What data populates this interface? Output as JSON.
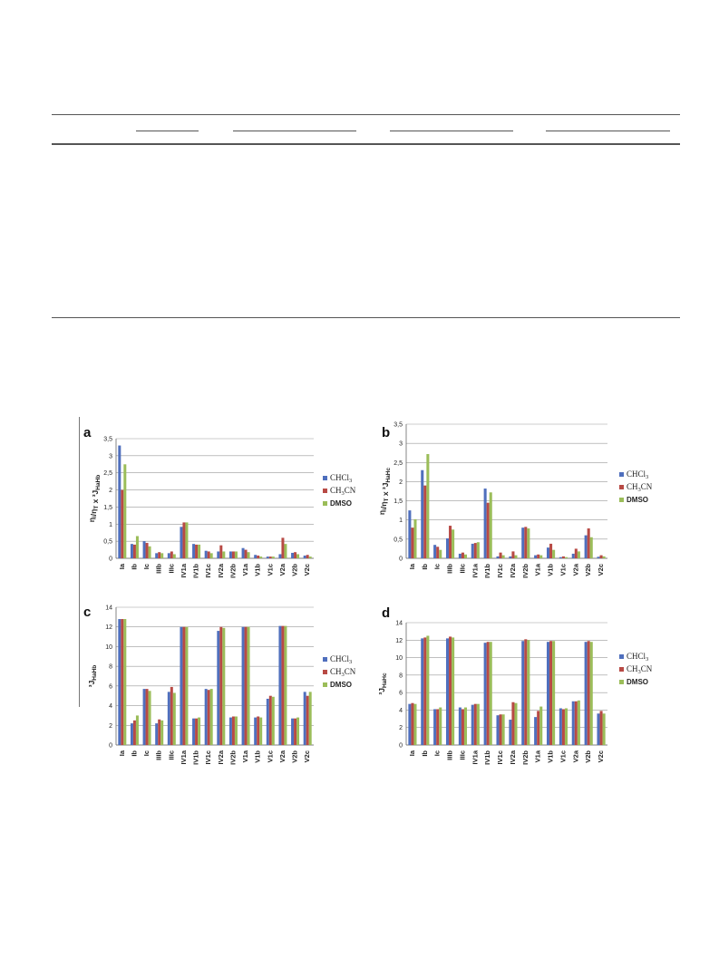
{
  "colors": {
    "CHCl3": "#4f6fbd",
    "CH3CN": "#b84a45",
    "DMSO": "#9bbd59",
    "grid": "#999999",
    "axis": "#666666"
  },
  "legend": [
    {
      "key": "CHCl3",
      "base": "CHCl",
      "sub": "3",
      "after": ""
    },
    {
      "key": "CH3CN",
      "base": "CH",
      "sub": "3",
      "after": "CN"
    },
    {
      "key": "DMSO",
      "base": "DMSO",
      "sub": "",
      "after": ""
    }
  ],
  "chart_data": [
    {
      "panel": "a",
      "type": "bar",
      "ylabel": "η_i/η_T x ³J_HaHb",
      "ylim": [
        0,
        3.5
      ],
      "yticks": [
        "0",
        "0,5",
        "1",
        "1,5",
        "2",
        "2,5",
        "3",
        "3,5"
      ],
      "categories": [
        "Ia",
        "Ib",
        "Ic",
        "IIIb",
        "IIIc",
        "IV1a",
        "IV1b",
        "IV1c",
        "IV2a",
        "IV2b",
        "V1a",
        "V1b",
        "V1c",
        "V2a",
        "V2b",
        "V2c"
      ],
      "series": [
        {
          "name": "CHCl3",
          "values": [
            3.3,
            0.42,
            0.5,
            0.15,
            0.15,
            0.92,
            0.42,
            0.22,
            0.2,
            0.2,
            0.3,
            0.1,
            0.05,
            0.12,
            0.16,
            0.08
          ]
        },
        {
          "name": "CH3CN",
          "values": [
            2.0,
            0.4,
            0.45,
            0.18,
            0.2,
            1.05,
            0.4,
            0.2,
            0.38,
            0.2,
            0.25,
            0.08,
            0.05,
            0.6,
            0.18,
            0.1
          ]
        },
        {
          "name": "DMSO",
          "values": [
            2.75,
            0.65,
            0.35,
            0.15,
            0.12,
            1.05,
            0.4,
            0.15,
            0.2,
            0.2,
            0.18,
            0.05,
            0.05,
            0.42,
            0.12,
            0.05
          ]
        }
      ]
    },
    {
      "panel": "b",
      "type": "bar",
      "ylabel": "η_i/η_T x ³J_HaHc",
      "ylim": [
        0,
        3.5
      ],
      "yticks": [
        "0",
        "0,5",
        "1",
        "1,5",
        "2",
        "2,5",
        "3",
        "3,5"
      ],
      "categories": [
        "Ia",
        "Ib",
        "Ic",
        "IIIb",
        "IIIc",
        "IV1a",
        "IV1b",
        "IV1c",
        "IV2a",
        "IV2b",
        "V1a",
        "V1b",
        "V1c",
        "V2a",
        "V2b",
        "V2c"
      ],
      "series": [
        {
          "name": "CHCl3",
          "values": [
            1.25,
            2.3,
            0.35,
            0.52,
            0.12,
            0.38,
            1.82,
            0.05,
            0.05,
            0.8,
            0.08,
            0.28,
            0.03,
            0.12,
            0.6,
            0.04
          ]
        },
        {
          "name": "CH3CN",
          "values": [
            0.8,
            1.9,
            0.3,
            0.85,
            0.15,
            0.4,
            1.45,
            0.15,
            0.18,
            0.82,
            0.1,
            0.38,
            0.05,
            0.25,
            0.78,
            0.08
          ]
        },
        {
          "name": "DMSO",
          "values": [
            1.02,
            2.72,
            0.22,
            0.75,
            0.1,
            0.42,
            1.72,
            0.08,
            0.08,
            0.78,
            0.08,
            0.22,
            0.03,
            0.18,
            0.55,
            0.05
          ]
        }
      ]
    },
    {
      "panel": "c",
      "type": "bar",
      "ylabel": "³J_HaHb",
      "ylim": [
        0,
        14
      ],
      "yticks": [
        "0",
        "2",
        "4",
        "6",
        "8",
        "10",
        "12",
        "14"
      ],
      "categories": [
        "Ia",
        "Ib",
        "Ic",
        "IIIb",
        "IIIc",
        "IV1a",
        "IV1b",
        "IV1c",
        "IV2a",
        "IV2b",
        "V1a",
        "V1b",
        "V1c",
        "V2a",
        "V2b",
        "V2c"
      ],
      "series": [
        {
          "name": "CHCl3",
          "values": [
            12.8,
            2.2,
            5.7,
            2.2,
            5.4,
            12.0,
            2.7,
            5.7,
            11.6,
            2.8,
            12.0,
            2.8,
            4.7,
            12.1,
            2.7,
            5.4
          ]
        },
        {
          "name": "CH3CN",
          "values": [
            12.8,
            2.5,
            5.7,
            2.6,
            5.9,
            12.0,
            2.7,
            5.6,
            12.0,
            2.9,
            12.0,
            2.9,
            5.0,
            12.1,
            2.7,
            5.0
          ]
        },
        {
          "name": "DMSO",
          "values": [
            12.8,
            3.0,
            5.5,
            2.5,
            5.3,
            12.0,
            2.8,
            5.7,
            11.9,
            2.9,
            12.0,
            2.8,
            4.9,
            12.1,
            2.8,
            5.4
          ]
        }
      ]
    },
    {
      "panel": "d",
      "type": "bar",
      "ylabel": "³J_HaHc",
      "ylim": [
        0,
        14
      ],
      "yticks": [
        "0",
        "2",
        "4",
        "6",
        "8",
        "10",
        "12",
        "14"
      ],
      "categories": [
        "Ia",
        "Ib",
        "Ic",
        "IIIb",
        "IIIc",
        "IV1a",
        "IV1b",
        "IV1c",
        "IV2a",
        "IV2b",
        "V1a",
        "V1b",
        "V1c",
        "V2a",
        "V2b",
        "V2c"
      ],
      "series": [
        {
          "name": "CHCl3",
          "values": [
            4.7,
            12.2,
            4.1,
            12.2,
            4.3,
            4.6,
            11.7,
            3.4,
            2.9,
            11.9,
            3.2,
            11.8,
            4.2,
            5.0,
            11.8,
            3.6
          ]
        },
        {
          "name": "CH3CN",
          "values": [
            4.8,
            12.3,
            4.1,
            12.4,
            4.1,
            4.7,
            11.8,
            3.5,
            4.9,
            12.1,
            3.9,
            11.9,
            4.1,
            5.0,
            11.9,
            3.9
          ]
        },
        {
          "name": "DMSO",
          "values": [
            4.7,
            12.5,
            4.3,
            12.3,
            4.3,
            4.7,
            11.8,
            3.5,
            4.8,
            12.0,
            4.4,
            11.9,
            4.2,
            5.1,
            11.8,
            3.6
          ]
        }
      ]
    }
  ]
}
